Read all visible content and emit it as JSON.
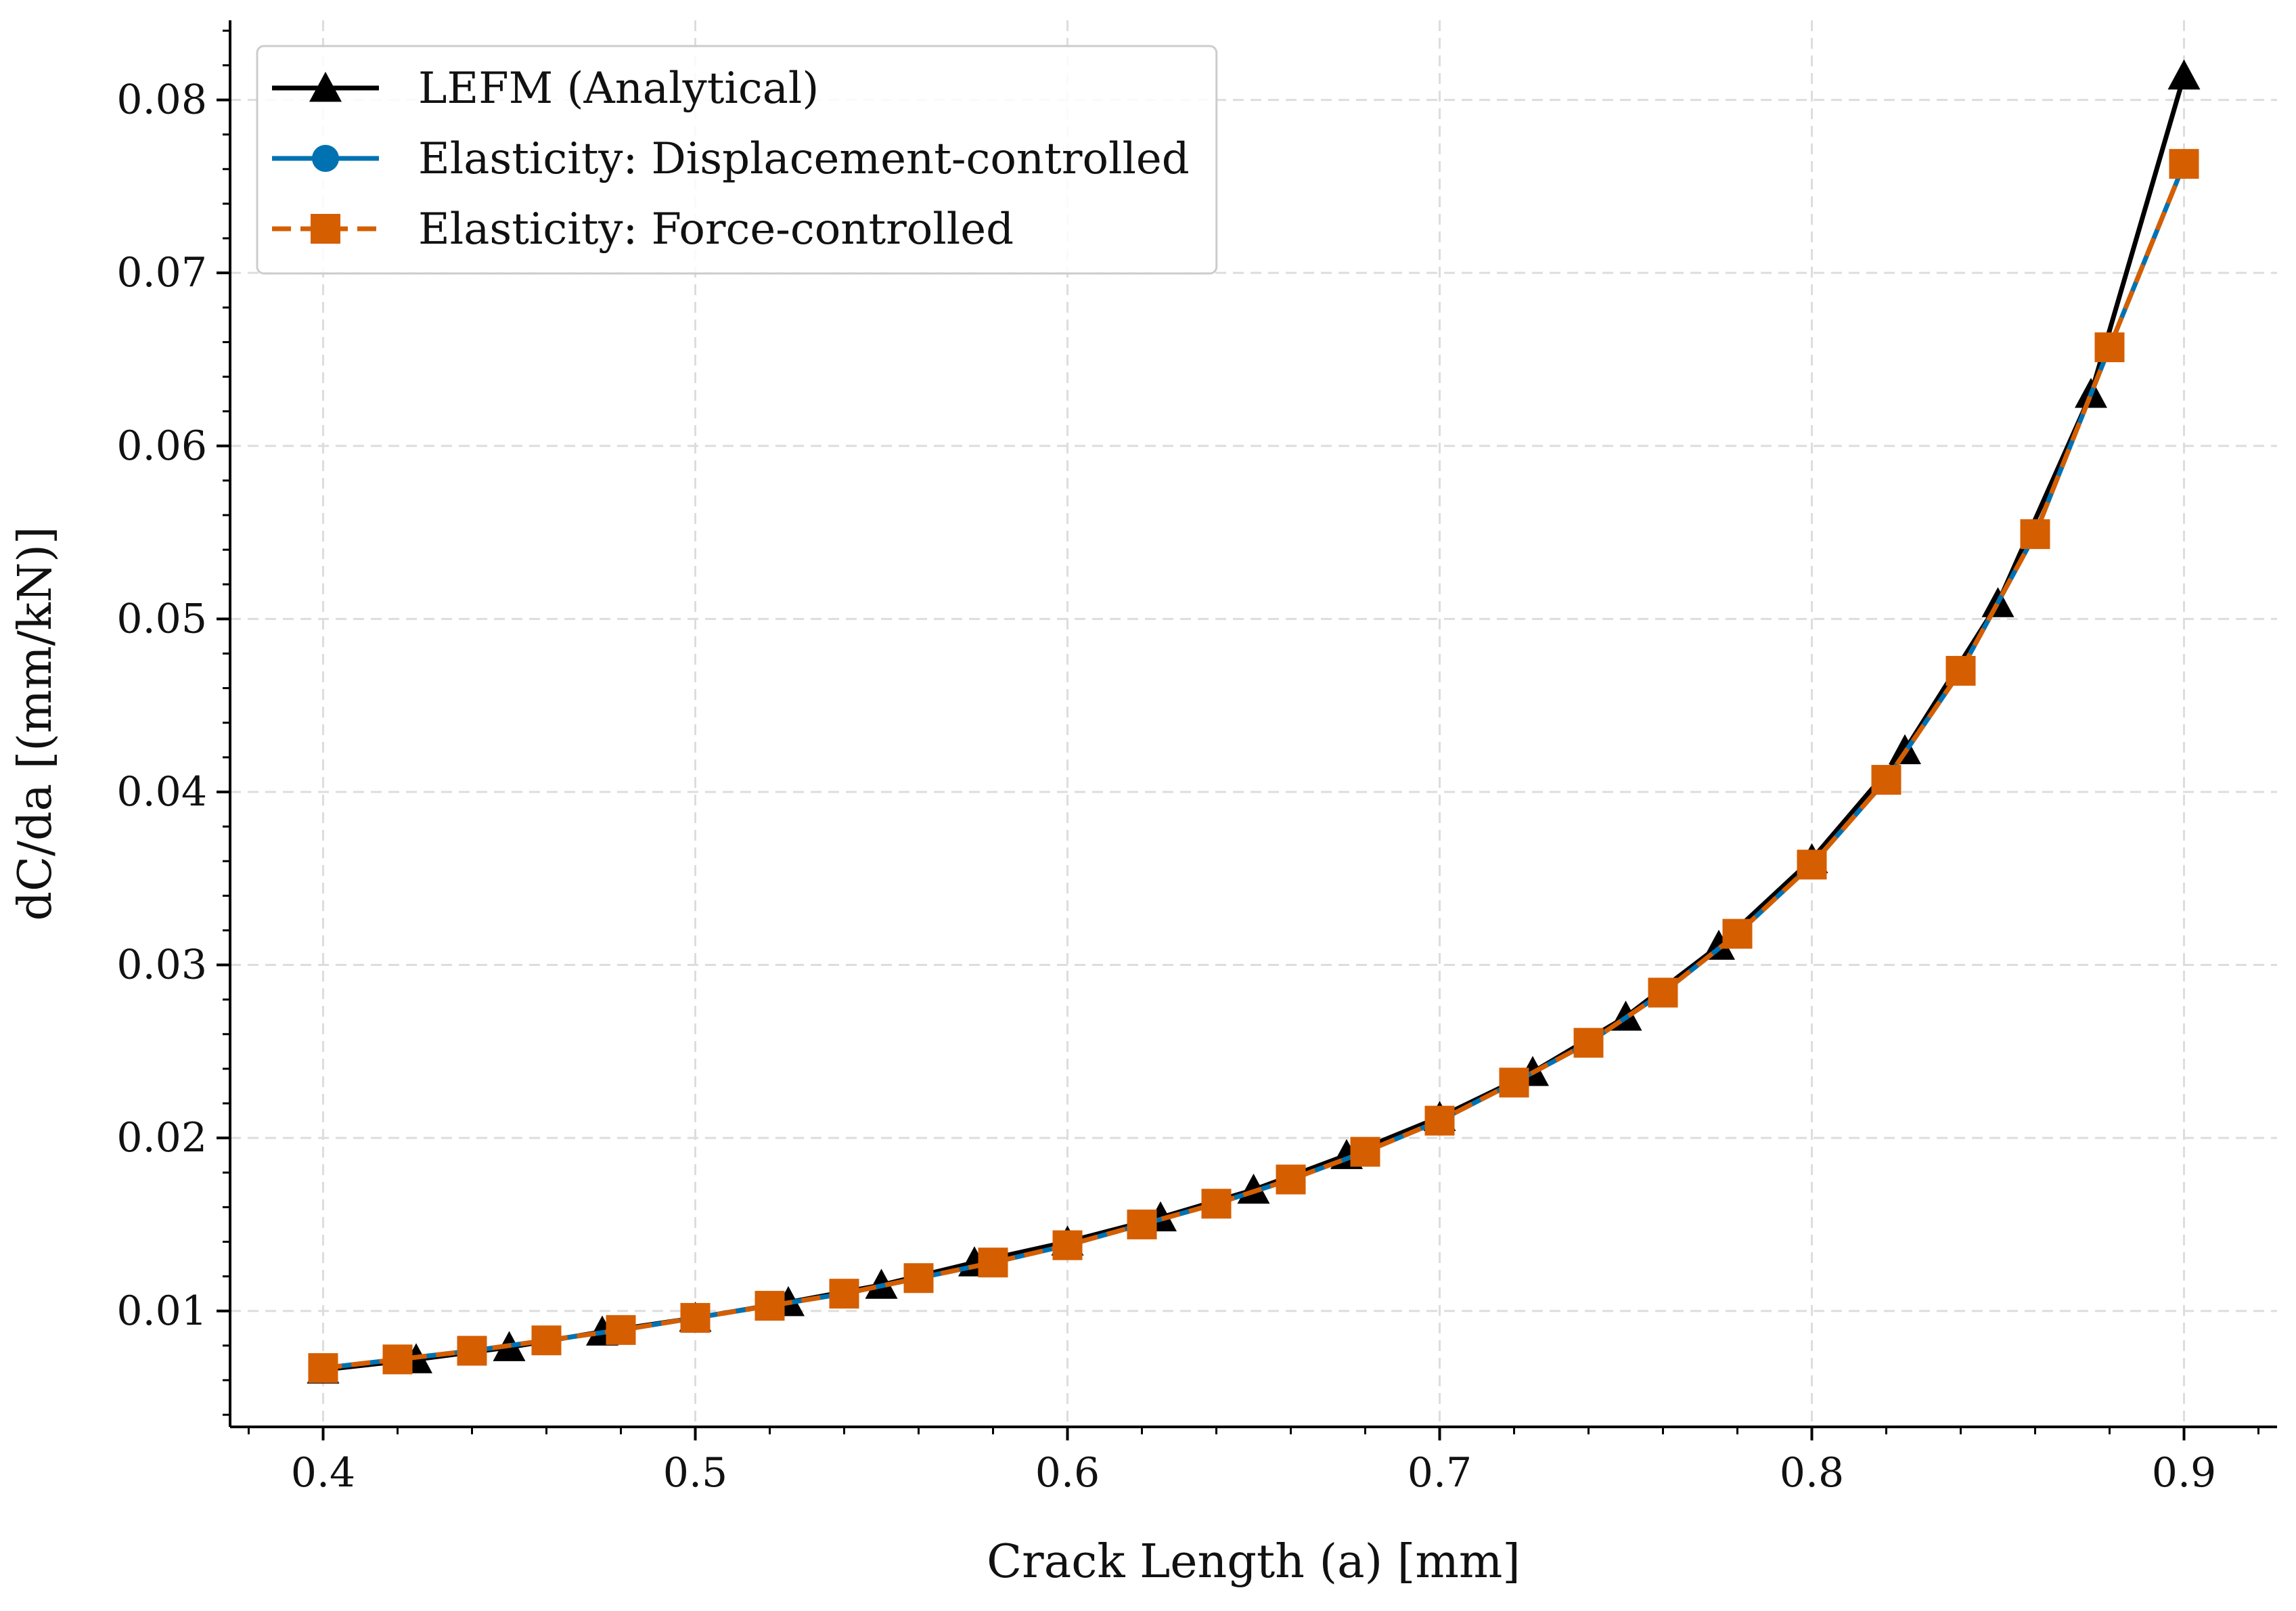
{
  "chart_data": {
    "type": "line",
    "title": "",
    "xlabel": "Crack Length (a) [mm]",
    "ylabel": "dC/da [(mm/kN)]",
    "xlim": [
      0.375,
      0.925
    ],
    "ylim": [
      0.0033,
      0.0846
    ],
    "grid": true,
    "legend_position": "top-left",
    "x_ticks": [
      0.4,
      0.5,
      0.6,
      0.7,
      0.8,
      0.9
    ],
    "x_tick_labels": [
      "0.4",
      "0.5",
      "0.6",
      "0.7",
      "0.8",
      "0.9"
    ],
    "y_ticks": [
      0.01,
      0.02,
      0.03,
      0.04,
      0.05,
      0.06,
      0.07,
      0.08
    ],
    "y_tick_labels": [
      "0.01",
      "0.02",
      "0.03",
      "0.04",
      "0.05",
      "0.06",
      "0.07",
      "0.08"
    ],
    "series": [
      {
        "name": "LEFM (Analytical)",
        "color": "#000000",
        "marker": "triangle",
        "line_style": "solid",
        "x": [
          0.4,
          0.425,
          0.45,
          0.475,
          0.5,
          0.525,
          0.55,
          0.575,
          0.6,
          0.625,
          0.65,
          0.675,
          0.7,
          0.725,
          0.75,
          0.775,
          0.8,
          0.825,
          0.85,
          0.875,
          0.9
        ],
        "y": [
          0.0066,
          0.0072,
          0.0079,
          0.0088,
          0.0096,
          0.0105,
          0.0115,
          0.0128,
          0.014,
          0.0154,
          0.017,
          0.019,
          0.0212,
          0.0238,
          0.027,
          0.0311,
          0.0361,
          0.0424,
          0.0509,
          0.063,
          0.0814
        ]
      },
      {
        "name": "Elasticity: Displacement-controlled",
        "color": "#0072B2",
        "marker": "circle",
        "line_style": "solid",
        "x": [
          0.4,
          0.42,
          0.44,
          0.46,
          0.48,
          0.5,
          0.52,
          0.54,
          0.56,
          0.58,
          0.6,
          0.62,
          0.64,
          0.66,
          0.68,
          0.7,
          0.72,
          0.74,
          0.76,
          0.78,
          0.8,
          0.82,
          0.84,
          0.86,
          0.88,
          0.9
        ],
        "y": [
          0.0067,
          0.0072,
          0.0077,
          0.0083,
          0.0089,
          0.0096,
          0.0103,
          0.011,
          0.0119,
          0.0128,
          0.0138,
          0.015,
          0.0162,
          0.0176,
          0.0192,
          0.021,
          0.0232,
          0.0255,
          0.0284,
          0.0318,
          0.0358,
          0.0407,
          0.047,
          0.0549,
          0.0657,
          0.0763
        ]
      },
      {
        "name": "Elasticity: Force-controlled",
        "color": "#D55E00",
        "marker": "square",
        "line_style": "dashed",
        "x": [
          0.4,
          0.42,
          0.44,
          0.46,
          0.48,
          0.5,
          0.52,
          0.54,
          0.56,
          0.58,
          0.6,
          0.62,
          0.64,
          0.66,
          0.68,
          0.7,
          0.72,
          0.74,
          0.76,
          0.78,
          0.8,
          0.82,
          0.84,
          0.86,
          0.88,
          0.9
        ],
        "y": [
          0.0067,
          0.0072,
          0.0077,
          0.0083,
          0.0089,
          0.0096,
          0.0103,
          0.011,
          0.0119,
          0.0128,
          0.0138,
          0.015,
          0.0162,
          0.0176,
          0.0192,
          0.021,
          0.0232,
          0.0255,
          0.0284,
          0.0318,
          0.0358,
          0.0407,
          0.047,
          0.0549,
          0.0657,
          0.0763
        ]
      }
    ]
  }
}
